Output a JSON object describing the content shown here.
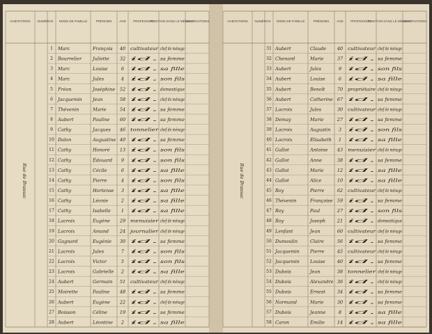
{
  "left_page": {
    "headers": [
      "HABITATIONS",
      "NUMÉROS",
      "NOMS DE FAMILLE",
      "PRÉNOMS",
      "AGE",
      "PROFESSION",
      "POSITION DANS LE MÉNAGE",
      "OBSERVATIONS"
    ],
    "margin_note": "Rue de Brassac",
    "rows": [
      [
        "1",
        "Marc",
        "François",
        "40",
        "cultivateur",
        "chef de ménage"
      ],
      [
        "2",
        "Bourrelier",
        "Juliette",
        "32",
        "id.",
        "sa femme"
      ],
      [
        "3",
        "Marc",
        "Louise",
        "6",
        "id.",
        "sa fille"
      ],
      [
        "4",
        "Marc",
        "Jules",
        "4",
        "id.",
        "son fils"
      ],
      [
        "5",
        "Fréon",
        "Joséphine",
        "52",
        "id.",
        "domestique"
      ],
      [
        "6",
        "Jacquemin",
        "Jean",
        "58",
        "id.",
        "chef de ménage"
      ],
      [
        "7",
        "Thévenin",
        "Marie",
        "54",
        "id.",
        "sa femme"
      ],
      [
        "8",
        "Aubert",
        "Pauline",
        "60",
        "id.",
        "sa femme"
      ],
      [
        "9",
        "Cathy",
        "Jacques",
        "46",
        "tonnelier",
        "chef de ménage"
      ],
      [
        "10",
        "Dalon",
        "Augustine",
        "40",
        "id.",
        "sa femme"
      ],
      [
        "11",
        "Cathy",
        "Honoré",
        "13",
        "id.",
        "son fils"
      ],
      [
        "12",
        "Cathy",
        "Édouard",
        "9",
        "id.",
        "son fils"
      ],
      [
        "13",
        "Cathy",
        "Cécile",
        "6",
        "id.",
        "sa fille"
      ],
      [
        "14",
        "Cathy",
        "Pierre",
        "4",
        "id.",
        "son fils"
      ],
      [
        "15",
        "Cathy",
        "Hortense",
        "3",
        "id.",
        "sa fille"
      ],
      [
        "16",
        "Cathy",
        "Léonie",
        "2",
        "id.",
        "sa fille"
      ],
      [
        "17",
        "Cathy",
        "Isabelle",
        "1",
        "id.",
        "sa fille"
      ],
      [
        "18",
        "Lacroix",
        "Eugène",
        "29",
        "menuisier",
        "chef de ménage"
      ],
      [
        "19",
        "Lacroix",
        "Amand",
        "24",
        "journalier",
        "chef de ménage"
      ],
      [
        "20",
        "Gagnard",
        "Eugénie",
        "30",
        "id.",
        "sa femme"
      ],
      [
        "21",
        "Lacroix",
        "Jules",
        "7",
        "id.",
        "son fils"
      ],
      [
        "22",
        "Lacroix",
        "Victor",
        "5",
        "id.",
        "son fils"
      ],
      [
        "23",
        "Lacroix",
        "Gabrielle",
        "2",
        "id.",
        "sa fille"
      ],
      [
        "24",
        "Aubert",
        "Germain",
        "51",
        "cultivateur",
        "chef de ménage"
      ],
      [
        "25",
        "Moirette",
        "Pauline",
        "48",
        "id.",
        "sa femme"
      ],
      [
        "26",
        "Aubert",
        "Eugène",
        "22",
        "id.",
        "chef de ménage"
      ],
      [
        "27",
        "Boisson",
        "Céline",
        "19",
        "id.",
        "sa femme"
      ],
      [
        "28",
        "Aubert",
        "Léontine",
        "2",
        "id.",
        "sa fille"
      ]
    ]
  },
  "right_page": {
    "headers": [
      "HABITATIONS",
      "NUMÉROS",
      "NOMS DE FAMILLE",
      "PRÉNOMS",
      "AGE",
      "PROFESSION",
      "POSITION DANS LE MÉNAGE",
      "OBSERVATIONS"
    ],
    "margin_note": "Rue de Brassac",
    "rows": [
      [
        "31",
        "Aubert",
        "Claude",
        "40",
        "cultivateur",
        "chef de ménage"
      ],
      [
        "32",
        "Chenard",
        "Marie",
        "37",
        "id.",
        "sa femme"
      ],
      [
        "33",
        "Aubert",
        "Jules",
        "9",
        "id.",
        "son fils"
      ],
      [
        "34",
        "Aubert",
        "Louise",
        "6",
        "id.",
        "sa fille"
      ],
      [
        "35",
        "Aubert",
        "Benoît",
        "70",
        "propriétaire",
        "chef de ménage"
      ],
      [
        "36",
        "Aubert",
        "Catherine",
        "67",
        "id.",
        "sa femme"
      ],
      [
        "37",
        "Lacroix",
        "Jules",
        "30",
        "cultivateur",
        "chef de ménage"
      ],
      [
        "38",
        "Demay",
        "Marie",
        "27",
        "id.",
        "sa femme"
      ],
      [
        "39",
        "Lacroix",
        "Augustin",
        "3",
        "id.",
        "son fils"
      ],
      [
        "40",
        "Lacroix",
        "Élisabeth",
        "1",
        "id.",
        "sa fille"
      ],
      [
        "41",
        "Gallot",
        "Antoine",
        "43",
        "menuisier",
        "chef de ménage"
      ],
      [
        "42",
        "Gallot",
        "Anne",
        "38",
        "id.",
        "sa femme"
      ],
      [
        "43",
        "Gallot",
        "Marie",
        "12",
        "id.",
        "sa fille"
      ],
      [
        "44",
        "Gallot",
        "Alice",
        "10",
        "id.",
        "sa fille"
      ],
      [
        "45",
        "Roy",
        "Pierre",
        "62",
        "cultivateur",
        "chef de ménage"
      ],
      [
        "46",
        "Thévenin",
        "Françoise",
        "59",
        "id.",
        "sa femme"
      ],
      [
        "47",
        "Roy",
        "Paul",
        "27",
        "id.",
        "son fils"
      ],
      [
        "48",
        "Roy",
        "Joseph",
        "21",
        "id.",
        "domestique"
      ],
      [
        "49",
        "Lenfant",
        "Jean",
        "60",
        "cultivateur",
        "chef de ménage"
      ],
      [
        "50",
        "Dumoulin",
        "Claire",
        "56",
        "id.",
        "sa femme"
      ],
      [
        "51",
        "Jacquemin",
        "Pierre",
        "45",
        "cultivateur",
        "chef de ménage"
      ],
      [
        "52",
        "Jacquemin",
        "Louise",
        "40",
        "id.",
        "sa femme"
      ],
      [
        "53",
        "Dubois",
        "Jean",
        "38",
        "tonnelier",
        "chef de ménage"
      ],
      [
        "54",
        "Dubois",
        "Alexandre",
        "36",
        "id.",
        "chef de ménage"
      ],
      [
        "55",
        "Dubois",
        "Ernest",
        "34",
        "id.",
        "sa femme"
      ],
      [
        "56",
        "Normand",
        "Marie",
        "30",
        "id.",
        "sa femme"
      ],
      [
        "57",
        "Dubois",
        "Jeanne",
        "8",
        "id.",
        "sa fille"
      ],
      [
        "58",
        "Caron",
        "Emilie",
        "14",
        "id.",
        "sa fille"
      ]
    ]
  }
}
